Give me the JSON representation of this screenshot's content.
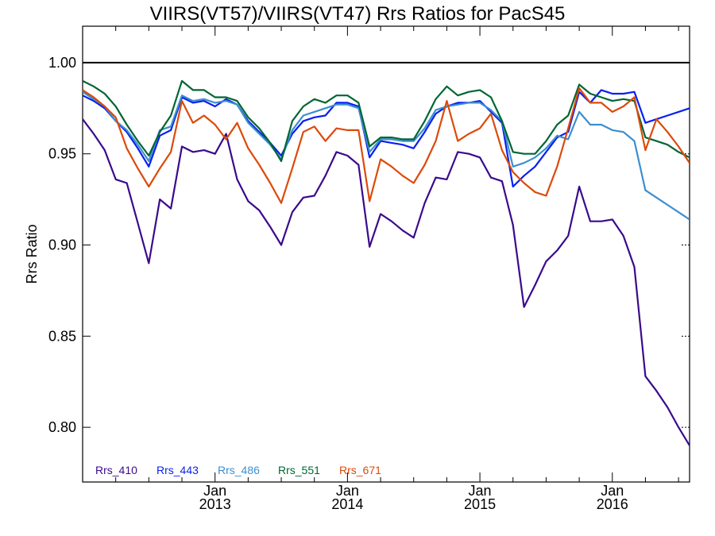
{
  "chart_data": {
    "type": "line",
    "title": "VIIRS(VT57)/VIIRS(VT47)  Rrs Ratios for PacS45",
    "xlabel": "",
    "ylabel": "Rrs Ratio",
    "x_unit": "months since Jan 2012",
    "xlim": [
      0,
      55
    ],
    "ylim": [
      0.77,
      1.02
    ],
    "y_ticks": [
      0.8,
      0.85,
      0.9,
      0.95,
      1.0
    ],
    "y_tick_labels": [
      "0.80",
      "0.85",
      "0.90",
      "0.95",
      "1.00"
    ],
    "x_ticks": [
      {
        "x": 12,
        "month": "Jan",
        "year": "2013"
      },
      {
        "x": 24,
        "month": "Jan",
        "year": "2014"
      },
      {
        "x": 36,
        "month": "Jan",
        "year": "2015"
      },
      {
        "x": 48,
        "month": "Jan",
        "year": "2016"
      }
    ],
    "reference_line": 1.0,
    "grid": false,
    "legend_placement": "bottom-left",
    "x": [
      0,
      1,
      2,
      3,
      4,
      5,
      6,
      7,
      8,
      9,
      10,
      11,
      12,
      13,
      14,
      15,
      16,
      17,
      18,
      19,
      20,
      21,
      22,
      23,
      24,
      25,
      26,
      27,
      28,
      29,
      30,
      31,
      32,
      33,
      34,
      35,
      36,
      37,
      38,
      39,
      40,
      41,
      42,
      43,
      44,
      45,
      46,
      47,
      48,
      49,
      50,
      51,
      52,
      53,
      54,
      55
    ],
    "series": [
      {
        "name": "Rrs_410",
        "color": "#3a0a8c",
        "values": [
          0.969,
          0.961,
          0.952,
          0.936,
          0.934,
          0.912,
          0.89,
          0.925,
          0.92,
          0.954,
          0.951,
          0.952,
          0.95,
          0.961,
          0.936,
          0.924,
          0.919,
          0.91,
          0.9,
          0.918,
          0.926,
          0.927,
          0.938,
          0.951,
          0.949,
          0.944,
          0.899,
          0.917,
          0.913,
          0.908,
          0.904,
          0.923,
          0.937,
          0.936,
          0.951,
          0.95,
          0.948,
          0.937,
          0.935,
          0.911,
          0.866,
          0.878,
          0.891,
          0.897,
          0.905,
          0.932,
          0.913,
          0.913,
          0.914,
          0.905,
          0.888,
          0.828,
          0.82,
          0.811,
          0.8,
          0.79
        ]
      },
      {
        "name": "Rrs_443",
        "color": "#0a1ff0",
        "values": [
          0.982,
          0.979,
          0.975,
          0.968,
          0.962,
          0.953,
          0.943,
          0.96,
          0.963,
          0.981,
          0.978,
          0.979,
          0.976,
          0.98,
          0.977,
          0.968,
          0.962,
          0.956,
          0.949,
          0.961,
          0.968,
          0.97,
          0.971,
          0.978,
          0.978,
          0.976,
          0.948,
          0.957,
          0.956,
          0.955,
          0.953,
          0.962,
          0.972,
          0.976,
          0.978,
          0.978,
          0.979,
          0.973,
          0.967,
          0.932,
          0.938,
          0.943,
          0.951,
          0.959,
          0.962,
          0.984,
          0.978,
          0.985,
          0.983,
          0.983,
          0.984,
          0.967,
          0.969,
          0.971,
          0.973,
          0.975
        ]
      },
      {
        "name": "Rrs_486",
        "color": "#3b8fd0",
        "values": [
          0.984,
          0.98,
          0.976,
          0.968,
          0.963,
          0.955,
          0.946,
          0.963,
          0.965,
          0.982,
          0.979,
          0.98,
          0.978,
          0.979,
          0.977,
          0.967,
          0.961,
          0.955,
          0.947,
          0.963,
          0.971,
          0.973,
          0.975,
          0.977,
          0.977,
          0.975,
          0.951,
          0.958,
          0.958,
          0.957,
          0.957,
          0.964,
          0.974,
          0.976,
          0.977,
          0.978,
          0.978,
          0.974,
          0.968,
          0.943,
          0.945,
          0.948,
          0.953,
          0.96,
          0.958,
          0.973,
          0.966,
          0.966,
          0.963,
          0.962,
          0.957,
          0.93,
          0.926,
          0.922,
          0.918,
          0.914
        ]
      },
      {
        "name": "Rrs_551",
        "color": "#006633",
        "values": [
          0.99,
          0.987,
          0.983,
          0.976,
          0.966,
          0.957,
          0.949,
          0.962,
          0.971,
          0.99,
          0.985,
          0.985,
          0.981,
          0.981,
          0.979,
          0.97,
          0.964,
          0.956,
          0.946,
          0.968,
          0.976,
          0.98,
          0.978,
          0.982,
          0.982,
          0.978,
          0.954,
          0.959,
          0.959,
          0.958,
          0.958,
          0.968,
          0.98,
          0.987,
          0.982,
          0.984,
          0.985,
          0.981,
          0.968,
          0.951,
          0.95,
          0.95,
          0.957,
          0.966,
          0.971,
          0.988,
          0.983,
          0.981,
          0.979,
          0.98,
          0.979,
          0.959,
          0.957,
          0.955,
          0.951,
          0.948
        ]
      },
      {
        "name": "Rrs_671",
        "color": "#dc4a0a",
        "values": [
          0.985,
          0.981,
          0.976,
          0.97,
          0.953,
          0.942,
          0.932,
          0.942,
          0.951,
          0.979,
          0.967,
          0.971,
          0.966,
          0.958,
          0.967,
          0.953,
          0.944,
          0.934,
          0.923,
          0.942,
          0.962,
          0.965,
          0.957,
          0.964,
          0.963,
          0.963,
          0.924,
          0.947,
          0.943,
          0.938,
          0.934,
          0.944,
          0.957,
          0.979,
          0.957,
          0.961,
          0.964,
          0.972,
          0.952,
          0.94,
          0.934,
          0.929,
          0.927,
          0.943,
          0.964,
          0.986,
          0.978,
          0.978,
          0.973,
          0.976,
          0.981,
          0.952,
          0.969,
          0.962,
          0.954,
          0.945
        ]
      }
    ]
  }
}
